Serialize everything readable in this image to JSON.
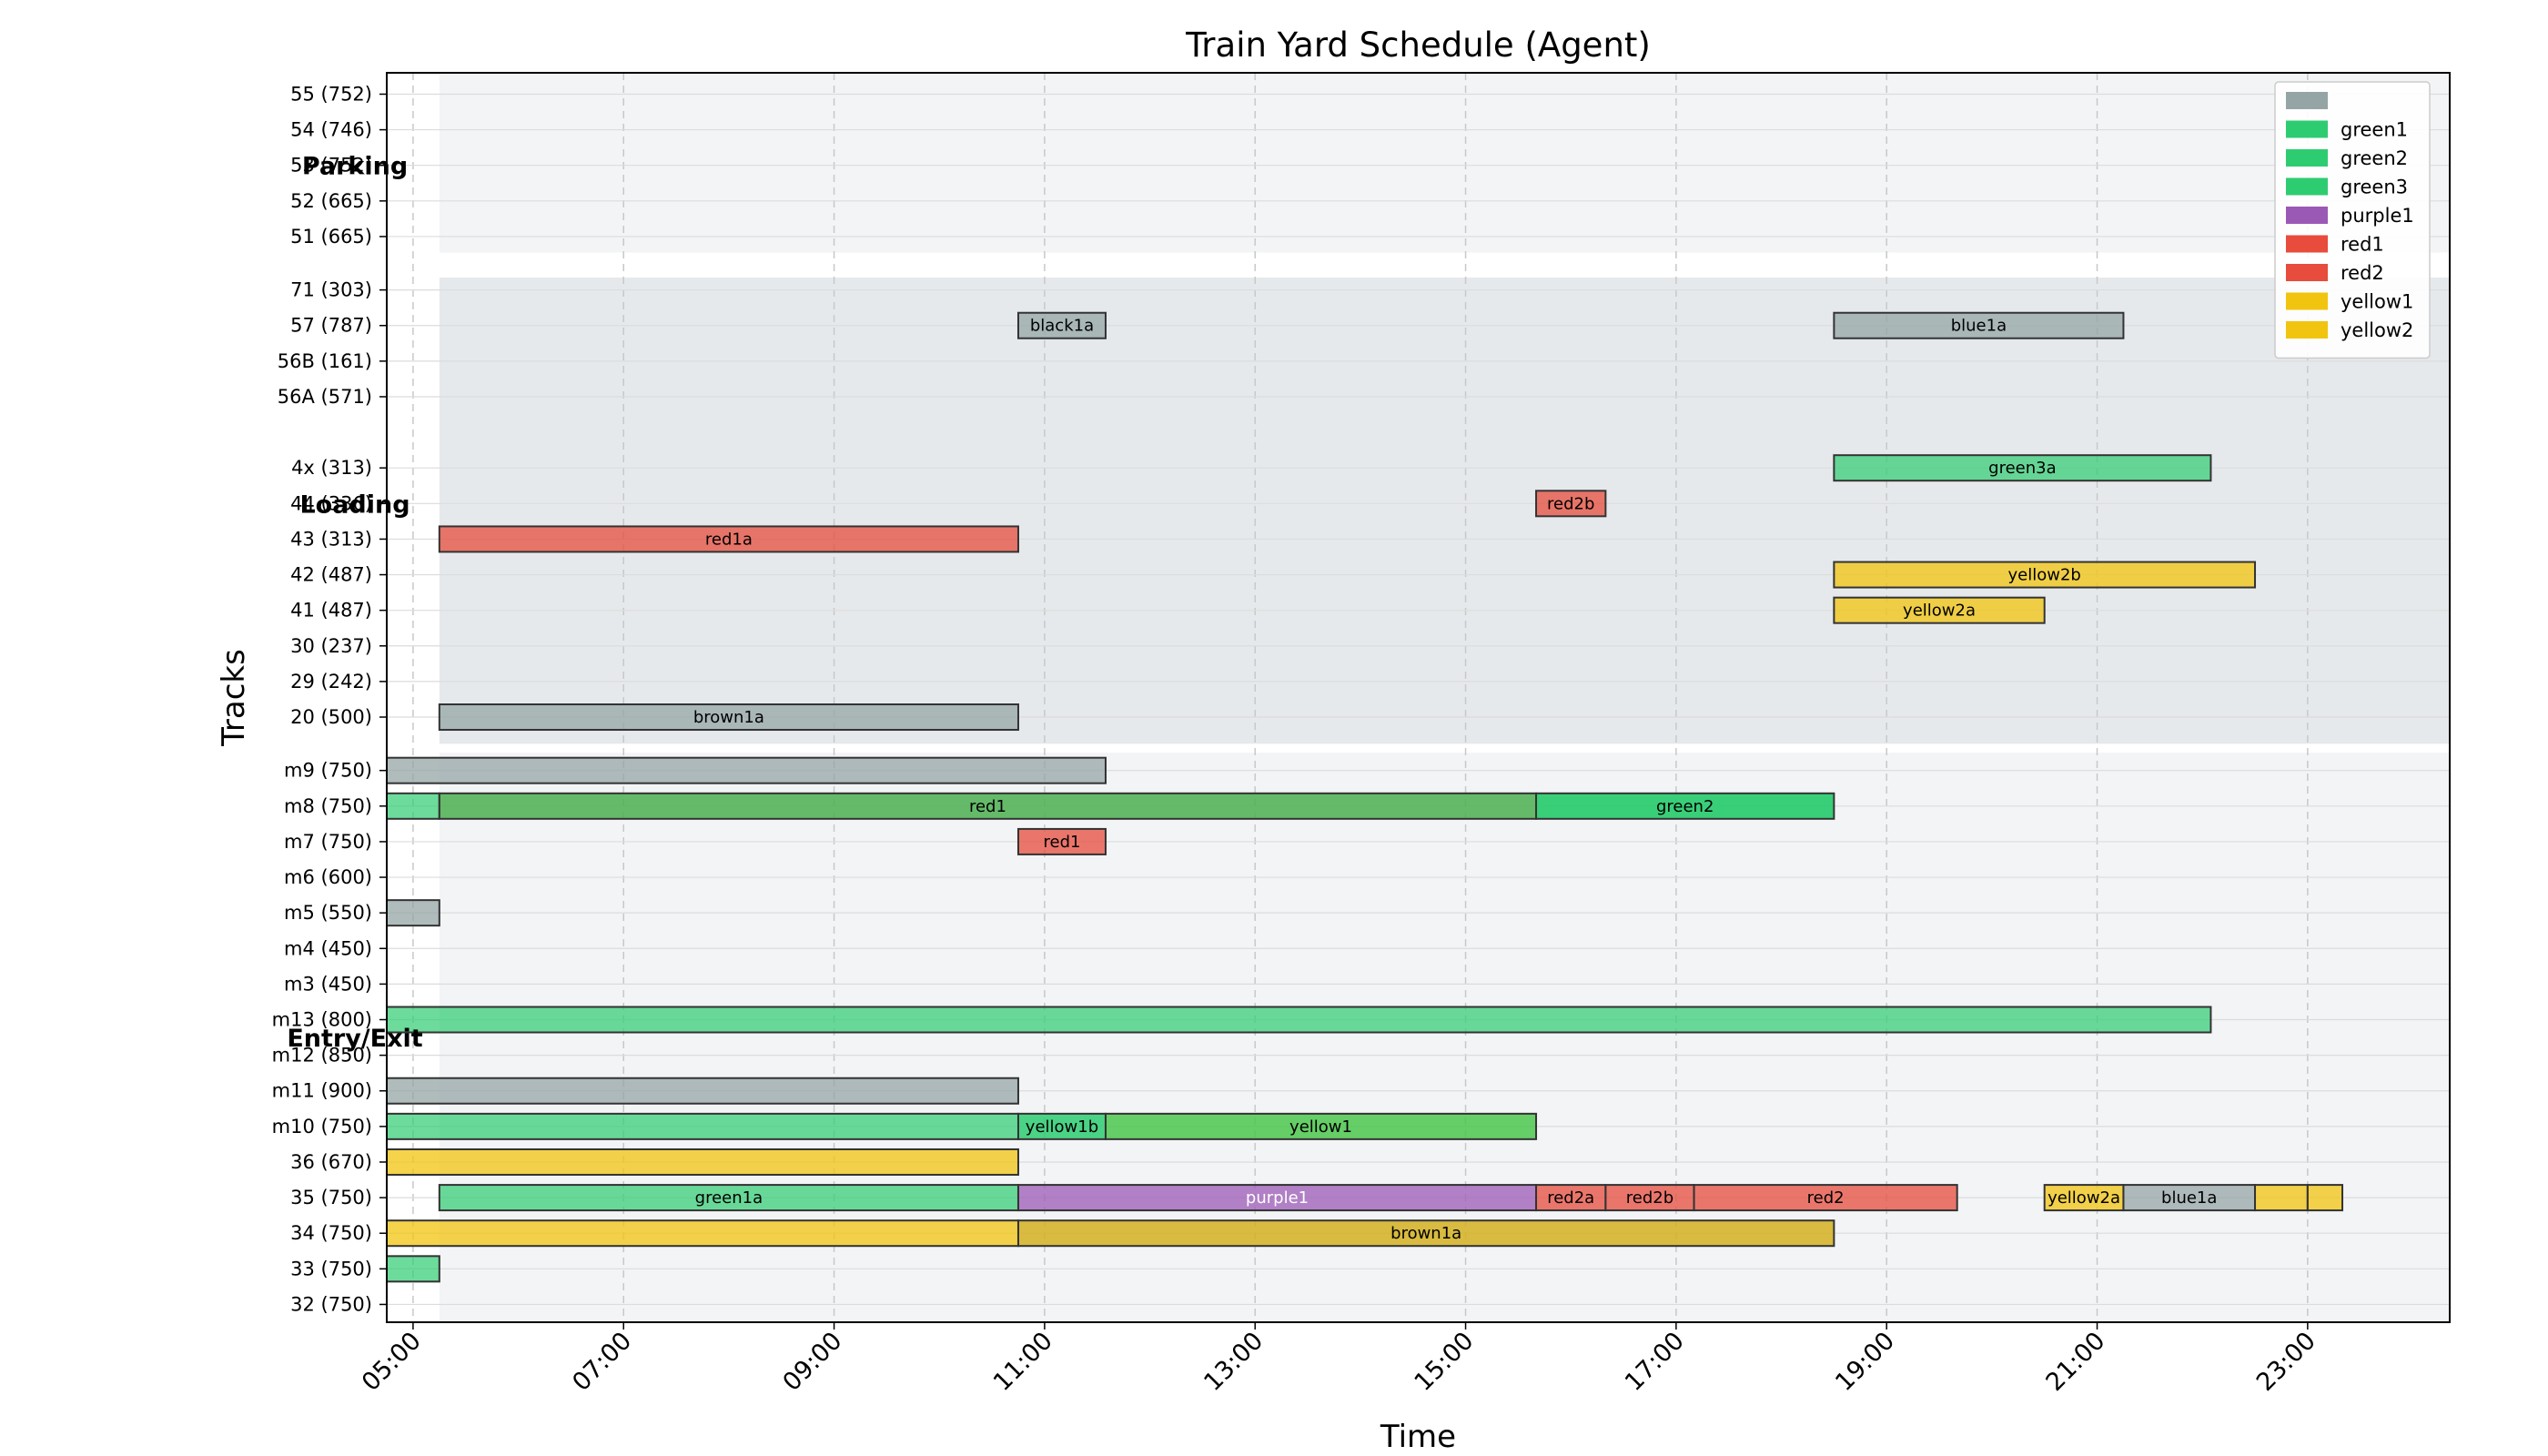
{
  "chart_data": {
    "type": "gantt",
    "title": "Train Yard Schedule (Agent)",
    "xlabel": "Time",
    "ylabel": "Tracks",
    "x_range": [
      4.75,
      24.35
    ],
    "x_ticks": [
      "05:00",
      "07:00",
      "09:00",
      "11:00",
      "13:00",
      "15:00",
      "17:00",
      "19:00",
      "21:00",
      "23:00"
    ],
    "x_tick_values": [
      5,
      7,
      9,
      11,
      13,
      15,
      17,
      19,
      21,
      23
    ],
    "grid": true,
    "legend_position": "top-right",
    "tracks": [
      {
        "label": "55 (752)",
        "row": 34.0
      },
      {
        "label": "54 (746)",
        "row": 33.0
      },
      {
        "label": "53 (752)",
        "row": 32.0
      },
      {
        "label": "52 (665)",
        "row": 31.0
      },
      {
        "label": "51 (665)",
        "row": 30.0
      },
      {
        "label": "71 (303)",
        "row": 28.5
      },
      {
        "label": "57 (787)",
        "row": 27.5
      },
      {
        "label": "56B (161)",
        "row": 26.5
      },
      {
        "label": "56A (571)",
        "row": 25.5
      },
      {
        "label": "4x (313)",
        "row": 23.5
      },
      {
        "label": "44 (336)",
        "row": 22.5
      },
      {
        "label": "43 (313)",
        "row": 21.5
      },
      {
        "label": "42 (487)",
        "row": 20.5
      },
      {
        "label": "41 (487)",
        "row": 19.5
      },
      {
        "label": "30 (237)",
        "row": 18.5
      },
      {
        "label": "29 (242)",
        "row": 17.5
      },
      {
        "label": "20 (500)",
        "row": 16.5
      },
      {
        "label": "m9 (750)",
        "row": 15.0
      },
      {
        "label": "m8 (750)",
        "row": 14.0
      },
      {
        "label": "m7 (750)",
        "row": 13.0
      },
      {
        "label": "m6 (600)",
        "row": 12.0
      },
      {
        "label": "m5 (550)",
        "row": 11.0
      },
      {
        "label": "m4 (450)",
        "row": 10.0
      },
      {
        "label": "m3 (450)",
        "row": 9.0
      },
      {
        "label": "m13 (800)",
        "row": 8.0
      },
      {
        "label": "m12 (850)",
        "row": 7.0
      },
      {
        "label": "m11 (900)",
        "row": 6.0
      },
      {
        "label": "m10 (750)",
        "row": 5.0
      },
      {
        "label": "36 (670)",
        "row": 4.0
      },
      {
        "label": "35 (750)",
        "row": 3.0
      },
      {
        "label": "34 (750)",
        "row": 2.0
      },
      {
        "label": "33 (750)",
        "row": 1.0
      },
      {
        "label": "32 (750)",
        "row": 0.0
      }
    ],
    "y_range": [
      -0.5,
      34.6
    ],
    "sections": [
      {
        "name": "Parking",
        "row_from": 29.55,
        "row_to": 34.6,
        "x_from": 5.25,
        "color": "#f2f4f6",
        "label_row": 32.0
      },
      {
        "name": "Loading",
        "row_from": 15.75,
        "row_to": 28.85,
        "x_from": 5.25,
        "color": "#e6e9ec",
        "label_row": 22.5
      },
      {
        "name": "Entry/Exit",
        "row_from": -0.5,
        "row_to": 15.5,
        "x_from": 5.25,
        "color": "#f2f4f6",
        "label_row": 7.5
      }
    ],
    "legend": [
      {
        "label": "",
        "color": "#95a5a6"
      },
      {
        "label": "green1",
        "color": "#2ecc71"
      },
      {
        "label": "green2",
        "color": "#2ecc71"
      },
      {
        "label": "green3",
        "color": "#2ecc71"
      },
      {
        "label": "purple1",
        "color": "#9b59b6"
      },
      {
        "label": "red1",
        "color": "#e74c3c"
      },
      {
        "label": "red2",
        "color": "#e74c3c"
      },
      {
        "label": "yellow1",
        "color": "#f1c40f"
      },
      {
        "label": "yellow2",
        "color": "#f1c40f"
      }
    ],
    "bars": [
      {
        "row": 27.5,
        "start": 10.75,
        "end": 11.58,
        "color": "#95a5a6",
        "alpha": 0.75,
        "label": "black1a",
        "text_color": "#000"
      },
      {
        "row": 27.5,
        "start": 18.5,
        "end": 21.25,
        "color": "#95a5a6",
        "alpha": 0.75,
        "label": "blue1a",
        "text_color": "#000"
      },
      {
        "row": 23.5,
        "start": 18.5,
        "end": 22.08,
        "color": "#2ecc71",
        "alpha": 0.7,
        "label": "green3a",
        "text_color": "#000"
      },
      {
        "row": 22.5,
        "start": 15.67,
        "end": 16.33,
        "color": "#e74c3c",
        "alpha": 0.75,
        "label": "red2b",
        "text_color": "#000"
      },
      {
        "row": 21.5,
        "start": 5.25,
        "end": 10.75,
        "color": "#e74c3c",
        "alpha": 0.75,
        "label": "red1a",
        "text_color": "#000"
      },
      {
        "row": 20.5,
        "start": 18.5,
        "end": 22.5,
        "color": "#f1c40f",
        "alpha": 0.75,
        "label": "yellow2b",
        "text_color": "#000"
      },
      {
        "row": 19.5,
        "start": 18.5,
        "end": 20.5,
        "color": "#f1c40f",
        "alpha": 0.75,
        "label": "yellow2a",
        "text_color": "#000"
      },
      {
        "row": 16.5,
        "start": 5.25,
        "end": 10.75,
        "color": "#95a5a6",
        "alpha": 0.75,
        "label": "brown1a",
        "text_color": "#000"
      },
      {
        "row": 15.0,
        "start": 4.75,
        "end": 11.58,
        "color": "#95a5a6",
        "alpha": 0.75,
        "label": "",
        "text_color": "#000"
      },
      {
        "row": 14.0,
        "start": 4.75,
        "end": 5.25,
        "color": "#2ecc71",
        "alpha": 0.7,
        "label": "",
        "text_color": "#000"
      },
      {
        "row": 14.0,
        "start": 5.25,
        "end": 15.67,
        "color": "#4caf50",
        "alpha": 0.85,
        "label": "red1",
        "text_color": "#000"
      },
      {
        "row": 14.0,
        "start": 15.67,
        "end": 18.5,
        "color": "#2ecc71",
        "alpha": 0.95,
        "label": "green2",
        "text_color": "#000"
      },
      {
        "row": 13.0,
        "start": 10.75,
        "end": 11.58,
        "color": "#e74c3c",
        "alpha": 0.75,
        "label": "red1",
        "text_color": "#000"
      },
      {
        "row": 11.0,
        "start": 4.75,
        "end": 5.25,
        "color": "#95a5a6",
        "alpha": 0.75,
        "label": "",
        "text_color": "#000"
      },
      {
        "row": 8.0,
        "start": 4.75,
        "end": 22.08,
        "color": "#2ecc71",
        "alpha": 0.7,
        "label": "",
        "text_color": "#000"
      },
      {
        "row": 6.0,
        "start": 4.75,
        "end": 10.75,
        "color": "#95a5a6",
        "alpha": 0.75,
        "label": "",
        "text_color": "#000"
      },
      {
        "row": 5.0,
        "start": 4.75,
        "end": 10.75,
        "color": "#2ecc71",
        "alpha": 0.7,
        "label": "",
        "text_color": "#000"
      },
      {
        "row": 5.0,
        "start": 10.75,
        "end": 11.58,
        "color": "#2ecc71",
        "alpha": 0.85,
        "label": "yellow1b",
        "text_color": "#000"
      },
      {
        "row": 5.0,
        "start": 11.58,
        "end": 15.67,
        "color": "#4cc74c",
        "alpha": 0.85,
        "label": "yellow1",
        "text_color": "#000"
      },
      {
        "row": 4.0,
        "start": 4.75,
        "end": 10.75,
        "color": "#f1c40f",
        "alpha": 0.75,
        "label": "",
        "text_color": "#000"
      },
      {
        "row": 3.0,
        "start": 5.25,
        "end": 10.75,
        "color": "#2ecc71",
        "alpha": 0.7,
        "label": "green1a",
        "text_color": "#000"
      },
      {
        "row": 3.0,
        "start": 10.75,
        "end": 15.67,
        "color": "#9b59b6",
        "alpha": 0.75,
        "label": "purple1",
        "text_color": "#fff"
      },
      {
        "row": 3.0,
        "start": 15.67,
        "end": 16.33,
        "color": "#e74c3c",
        "alpha": 0.75,
        "label": "red2a",
        "text_color": "#000"
      },
      {
        "row": 3.0,
        "start": 16.33,
        "end": 17.17,
        "color": "#e74c3c",
        "alpha": 0.75,
        "label": "red2b",
        "text_color": "#000"
      },
      {
        "row": 3.0,
        "start": 17.17,
        "end": 19.67,
        "color": "#e74c3c",
        "alpha": 0.75,
        "label": "red2",
        "text_color": "#000"
      },
      {
        "row": 3.0,
        "start": 20.5,
        "end": 21.25,
        "color": "#f1c40f",
        "alpha": 0.75,
        "label": "yellow2a",
        "text_color": "#000"
      },
      {
        "row": 3.0,
        "start": 21.25,
        "end": 22.5,
        "color": "#95a5a6",
        "alpha": 0.75,
        "label": "blue1a",
        "text_color": "#000"
      },
      {
        "row": 3.0,
        "start": 22.5,
        "end": 23.0,
        "color": "#f1c40f",
        "alpha": 0.75,
        "label": "",
        "text_color": "#000"
      },
      {
        "row": 3.0,
        "start": 23.0,
        "end": 23.33,
        "color": "#f1c40f",
        "alpha": 0.75,
        "label": "",
        "text_color": "#000"
      },
      {
        "row": 2.0,
        "start": 4.75,
        "end": 10.75,
        "color": "#f1c40f",
        "alpha": 0.75,
        "label": "",
        "text_color": "#000"
      },
      {
        "row": 2.0,
        "start": 10.75,
        "end": 18.5,
        "color": "#d4b020",
        "alpha": 0.85,
        "label": "brown1a",
        "text_color": "#000"
      },
      {
        "row": 1.0,
        "start": 4.75,
        "end": 5.25,
        "color": "#2ecc71",
        "alpha": 0.7,
        "label": "",
        "text_color": "#000"
      }
    ]
  }
}
